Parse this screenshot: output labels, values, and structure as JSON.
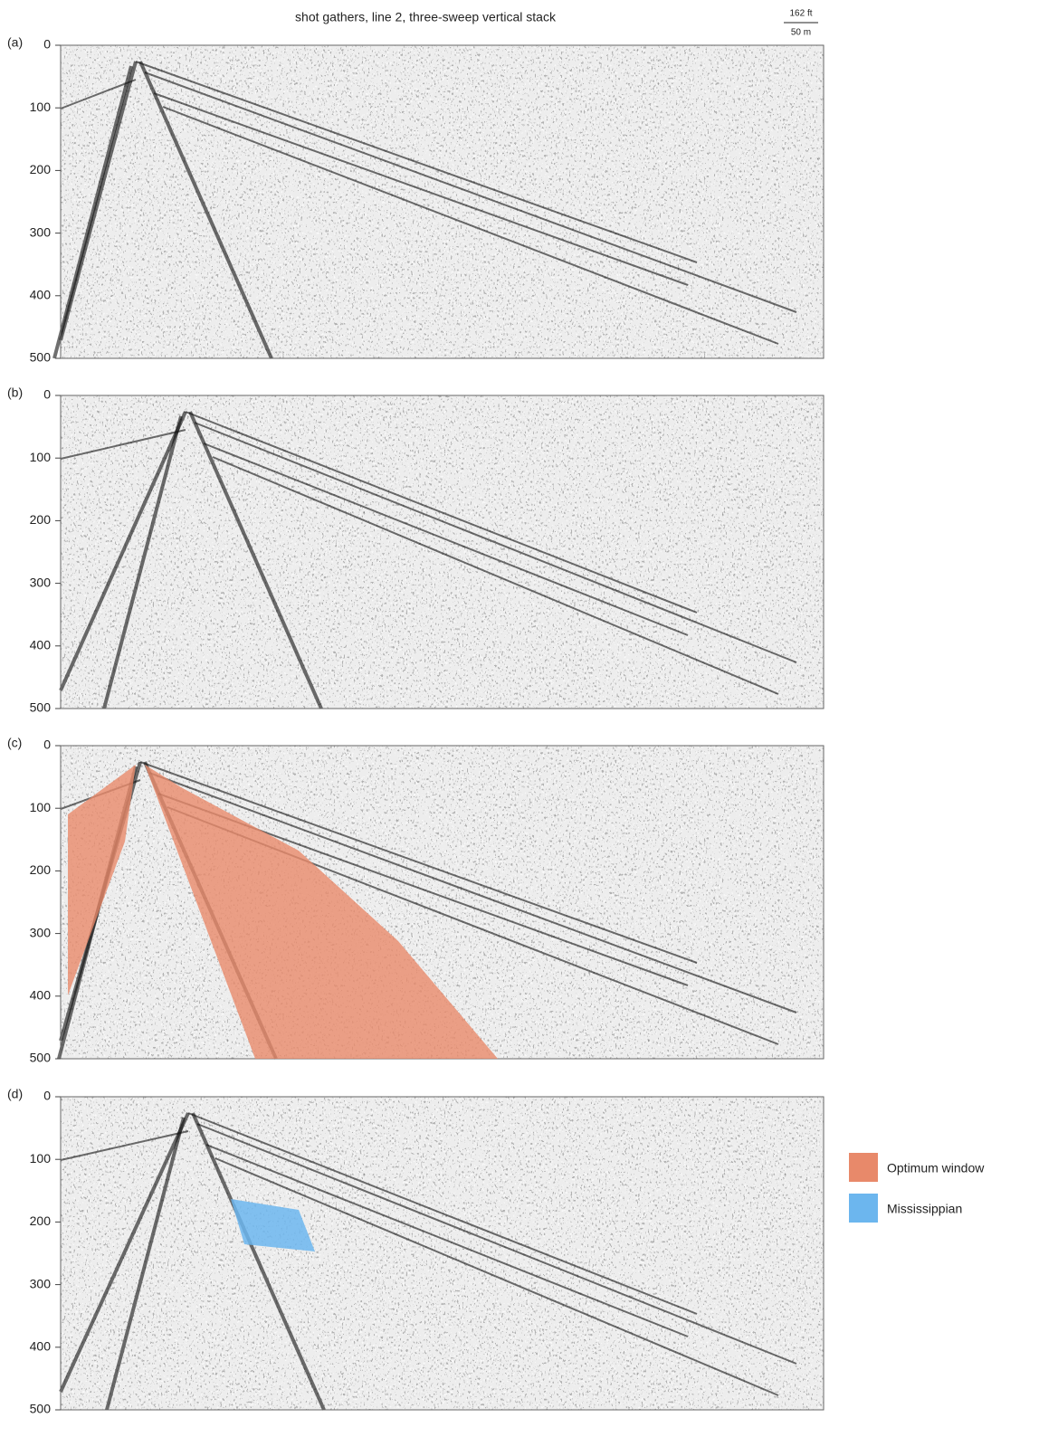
{
  "title": "shot gathers, line 2, three-sweep vertical stack",
  "scale": {
    "top": "162 ft",
    "bottom": "50 m"
  },
  "panels": [
    {
      "label": "(a)",
      "ylim": [
        0,
        500
      ],
      "yticks": [
        0,
        100,
        200,
        300,
        400,
        500
      ]
    },
    {
      "label": "(b)",
      "ylim": [
        0,
        500
      ],
      "yticks": [
        0,
        100,
        200,
        300,
        400,
        500
      ]
    },
    {
      "label": "(c)",
      "ylim": [
        0,
        500
      ],
      "yticks": [
        0,
        100,
        200,
        300,
        400,
        500
      ]
    },
    {
      "label": "(d)",
      "ylim": [
        0,
        500
      ],
      "yticks": [
        0,
        100,
        200,
        300,
        400,
        500
      ]
    }
  ],
  "legend": [
    {
      "label": "Optimum window",
      "color": "#e8896a"
    },
    {
      "label": "Mississippian",
      "color": "#6cb6ee"
    }
  ]
}
